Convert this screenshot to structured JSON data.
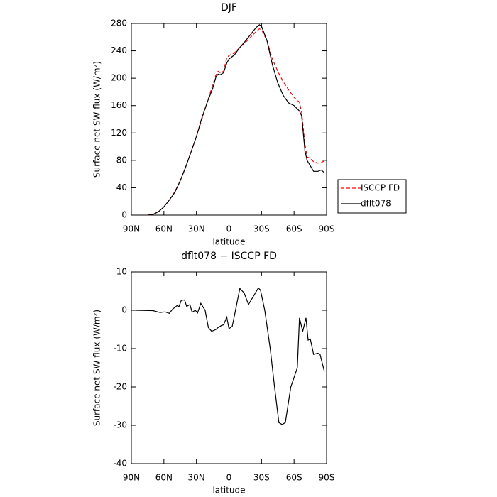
{
  "chart_data": [
    {
      "type": "line",
      "title": "DJF",
      "xlabel": "latitude",
      "ylabel": "Surface net SW flux (W/m²)",
      "xlim": [
        90,
        -90
      ],
      "ylim": [
        0,
        280
      ],
      "xticks": [
        {
          "value": 90,
          "label": "90N"
        },
        {
          "value": 60,
          "label": "60N"
        },
        {
          "value": 30,
          "label": "30N"
        },
        0,
        {
          "value": -30,
          "label": "30S"
        },
        {
          "value": -60,
          "label": "60S"
        },
        {
          "value": -90,
          "label": "90S"
        }
      ],
      "yticks": [
        0,
        40,
        80,
        120,
        160,
        200,
        240,
        280
      ],
      "legend": "right",
      "x": [
        75,
        70,
        65,
        60,
        55,
        50,
        45,
        40,
        35,
        30,
        25,
        20,
        15,
        12,
        10,
        8,
        5,
        2,
        0,
        -5,
        -10,
        -15,
        -20,
        -25,
        -28,
        -30,
        -35,
        -40,
        -45,
        -50,
        -55,
        -60,
        -65,
        -67,
        -70,
        -72,
        -75,
        -78,
        -82,
        -85,
        -88
      ],
      "series": [
        {
          "name": "ISCCP FD",
          "color": "#ff0000",
          "dash": true,
          "values": [
            0,
            1,
            5,
            12,
            22,
            34,
            50,
            70,
            92,
            115,
            140,
            165,
            190,
            205,
            210,
            208,
            210,
            230,
            233,
            237,
            245,
            252,
            260,
            268,
            272,
            271,
            255,
            228,
            210,
            195,
            183,
            172,
            165,
            150,
            105,
            85,
            83,
            78,
            76,
            77,
            79
          ]
        },
        {
          "name": "dflt078",
          "color": "#000000",
          "dash": false,
          "values": [
            0,
            1,
            5,
            12,
            22,
            33,
            50,
            70,
            92,
            115,
            142,
            165,
            185,
            202,
            206,
            205,
            208,
            222,
            228,
            234,
            245,
            254,
            264,
            274,
            278,
            276,
            255,
            220,
            193,
            175,
            164,
            160,
            152,
            145,
            95,
            80,
            72,
            64,
            64,
            66,
            62
          ]
        }
      ]
    },
    {
      "type": "line",
      "title": "dflt078 − ISCCP FD",
      "xlabel": "latitude",
      "ylabel": "Surface net SW flux (W/m²)",
      "xlim": [
        90,
        -90
      ],
      "ylim": [
        -40,
        10
      ],
      "xticks": [
        {
          "value": 90,
          "label": "90N"
        },
        {
          "value": 60,
          "label": "60N"
        },
        {
          "value": 30,
          "label": "30N"
        },
        0,
        {
          "value": -30,
          "label": "30S"
        },
        {
          "value": -60,
          "label": "60S"
        },
        {
          "value": -90,
          "label": "90S"
        }
      ],
      "yticks": [
        -40,
        -30,
        -20,
        -10,
        0,
        10
      ],
      "x": [
        86,
        70,
        63.5,
        59,
        55,
        52,
        48,
        46,
        44,
        41,
        39,
        36,
        34,
        31,
        29,
        26,
        22,
        19,
        16,
        12,
        10,
        7,
        5,
        2,
        0,
        -3,
        -6,
        -10,
        -14,
        -18,
        -27,
        -29,
        -33,
        -38,
        -42,
        -46,
        -49,
        -52,
        -57,
        -63,
        -65,
        -68,
        -71,
        -73,
        -75,
        -78,
        -82,
        -84,
        -88
      ],
      "series": [
        {
          "color": "#000000",
          "dash": false,
          "values": [
            0,
            -0.1,
            -0.6,
            -0.4,
            -0.8,
            0.3,
            1.2,
            1.0,
            2.6,
            2.7,
            1.0,
            1.5,
            -0.5,
            0,
            -0.7,
            1.8,
            0,
            -4.5,
            -5.5,
            -5,
            -4.5,
            -4,
            -3.8,
            -1.8,
            -4.8,
            -4.2,
            0,
            5.7,
            4.5,
            1.5,
            5.8,
            5.3,
            0,
            -10,
            -20,
            -29.3,
            -29.8,
            -29.3,
            -20,
            -15,
            -2,
            -5.5,
            -2,
            -7.8,
            -7.5,
            -11.5,
            -11.2,
            -11.5,
            -16
          ]
        }
      ]
    }
  ]
}
